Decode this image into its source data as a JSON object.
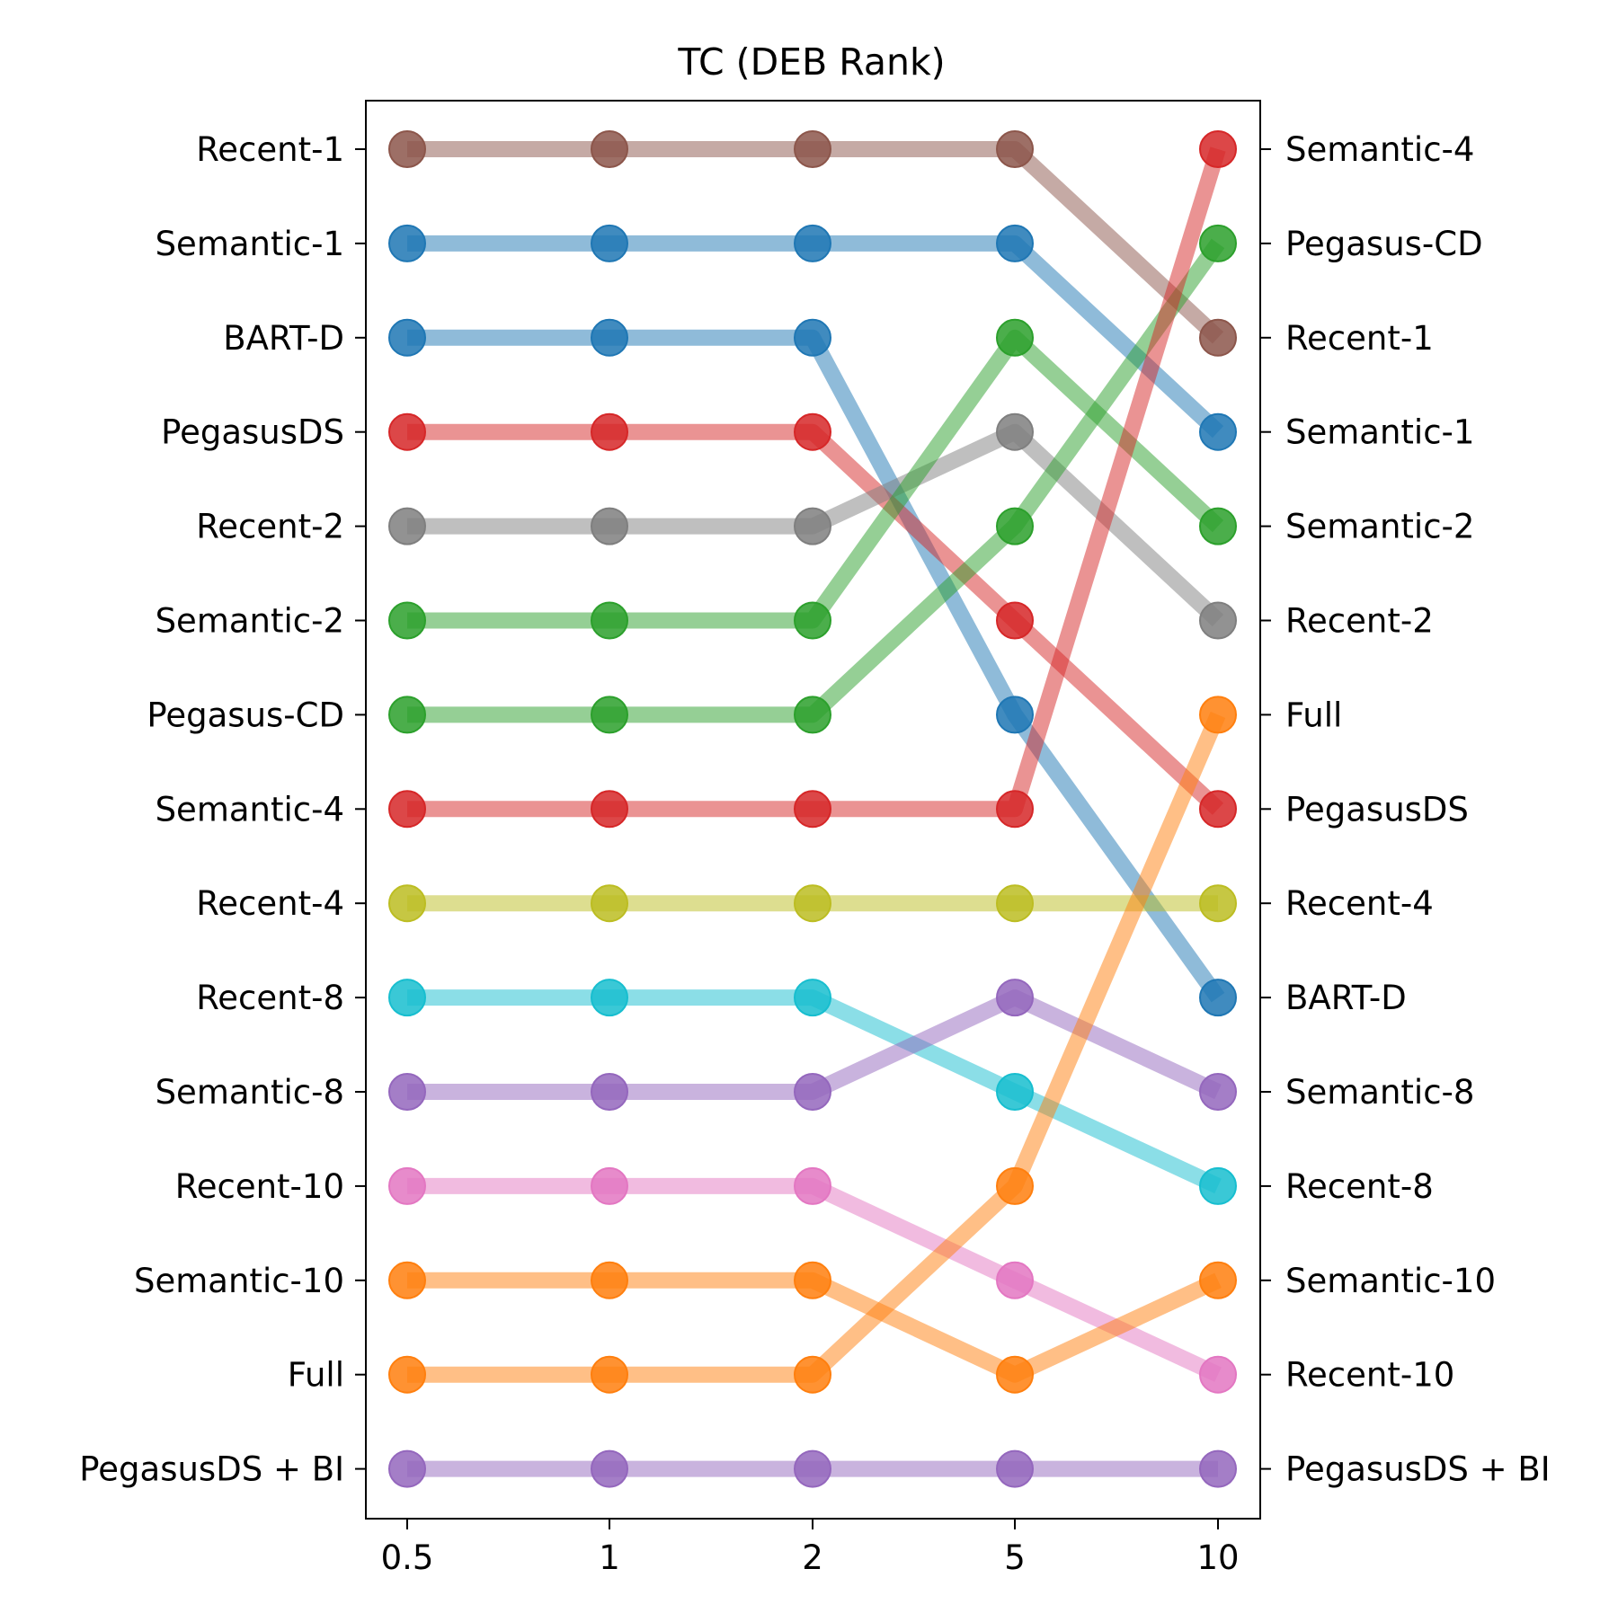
{
  "chart_data": {
    "type": "line",
    "title": "TC (DEB Rank)",
    "xlabel": "",
    "ylabel": "",
    "x": [
      "0.5",
      "1",
      "2",
      "5",
      "10"
    ],
    "rank_direction": "rank 1 at top",
    "grid": false,
    "legend": "none",
    "left_labels": [
      "Recent-1",
      "Semantic-1",
      "BART-D",
      "PegasusDS",
      "Recent-2",
      "Semantic-2",
      "Pegasus-CD",
      "Semantic-4",
      "Recent-4",
      "Recent-8",
      "Semantic-8",
      "Recent-10",
      "Semantic-10",
      "Full",
      "PegasusDS + BI"
    ],
    "right_labels": [
      "Semantic-4",
      "Pegasus-CD",
      "Recent-1",
      "Semantic-1",
      "Semantic-2",
      "Recent-2",
      "Full",
      "PegasusDS",
      "Recent-4",
      "BART-D",
      "Semantic-8",
      "Recent-8",
      "Semantic-10",
      "Recent-10",
      "PegasusDS + BI"
    ],
    "series": [
      {
        "ranks": [
          1,
          1,
          1,
          1,
          3
        ],
        "color": "#8c564b"
      },
      {
        "ranks": [
          2,
          2,
          2,
          2,
          4
        ],
        "color": "#1f77b4"
      },
      {
        "ranks": [
          3,
          3,
          3,
          7,
          10
        ],
        "color": "#1f77b4"
      },
      {
        "ranks": [
          4,
          4,
          4,
          6,
          8
        ],
        "color": "#d62728"
      },
      {
        "ranks": [
          5,
          5,
          5,
          4,
          6
        ],
        "color": "#7f7f7f"
      },
      {
        "ranks": [
          6,
          6,
          6,
          3,
          5
        ],
        "color": "#2ca02c"
      },
      {
        "ranks": [
          7,
          7,
          7,
          5,
          2
        ],
        "color": "#2ca02c"
      },
      {
        "ranks": [
          8,
          8,
          8,
          8,
          1
        ],
        "color": "#d62728"
      },
      {
        "ranks": [
          9,
          9,
          9,
          9,
          9
        ],
        "color": "#bcbd22"
      },
      {
        "ranks": [
          10,
          10,
          10,
          11,
          12
        ],
        "color": "#17becf"
      },
      {
        "ranks": [
          11,
          11,
          11,
          10,
          11
        ],
        "color": "#9467bd"
      },
      {
        "ranks": [
          12,
          12,
          12,
          13,
          14
        ],
        "color": "#e377c2"
      },
      {
        "ranks": [
          13,
          13,
          13,
          14,
          13
        ],
        "color": "#ff7f0e"
      },
      {
        "ranks": [
          14,
          14,
          14,
          12,
          7
        ],
        "color": "#ff7f0e"
      },
      {
        "ranks": [
          15,
          15,
          15,
          15,
          15
        ],
        "color": "#9467bd"
      }
    ]
  }
}
